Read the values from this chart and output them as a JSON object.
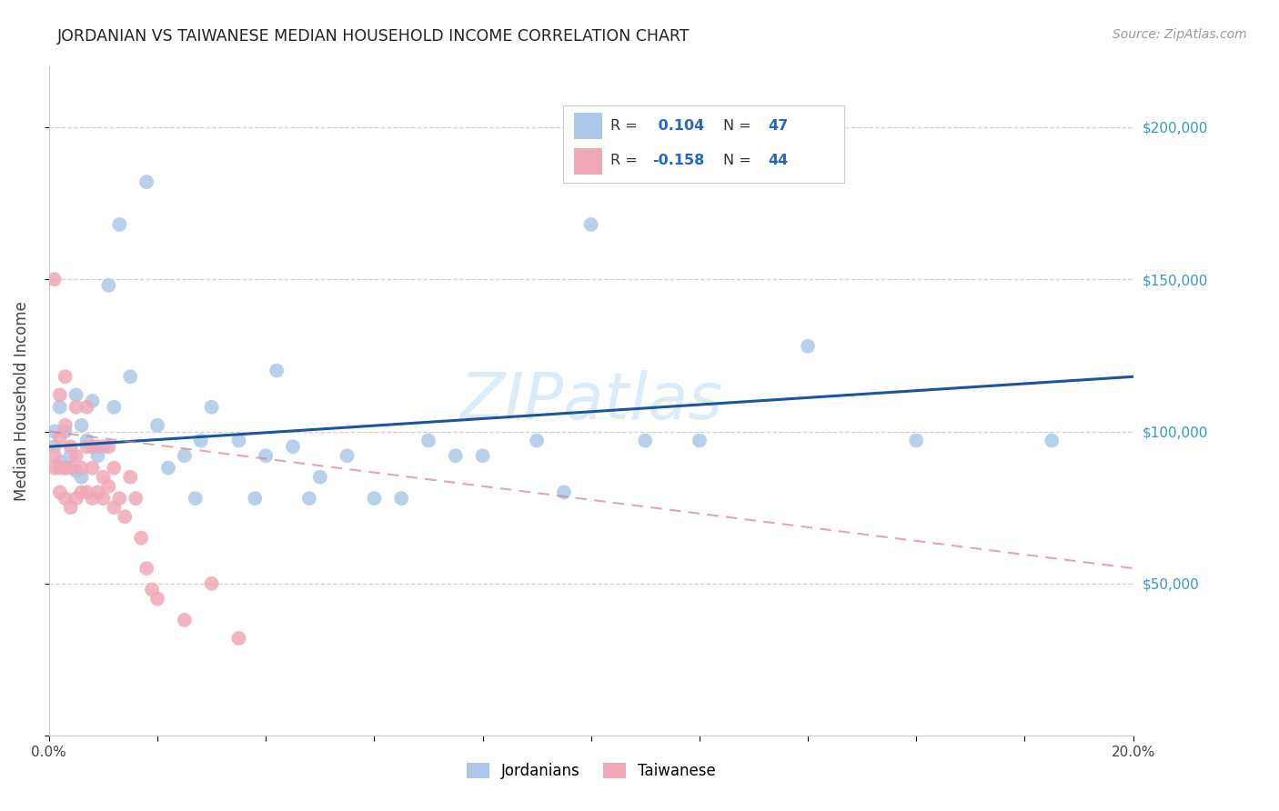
{
  "title": "JORDANIAN VS TAIWANESE MEDIAN HOUSEHOLD INCOME CORRELATION CHART",
  "source": "Source: ZipAtlas.com",
  "ylabel": "Median Household Income",
  "xlim": [
    0.0,
    0.2
  ],
  "ylim": [
    0,
    220000
  ],
  "ytick_positions": [
    0,
    50000,
    100000,
    150000,
    200000
  ],
  "ytick_labels": [
    "",
    "$50,000",
    "$100,000",
    "$150,000",
    "$200,000"
  ],
  "r_jordanian": 0.104,
  "n_jordanian": 47,
  "r_taiwanese": -0.158,
  "n_taiwanese": 44,
  "jordanian_color": "#adc8e8",
  "taiwanese_color": "#f0a8b8",
  "trend_jordanian_color": "#1a55a0",
  "trend_taiwanese_color": "#d08098",
  "background_color": "#ffffff",
  "grid_color": "#d0d0d0",
  "watermark_text": "ZIPatlas",
  "watermark_color": "#b8d8f0",
  "watermark_alpha": 0.5,
  "legend_r1_text": "R = ",
  "legend_r1_val": " 0.104",
  "legend_n1_text": "N = ",
  "legend_n1_val": "47",
  "legend_r2_text": "R = ",
  "legend_r2_val": "-0.158",
  "legend_n2_text": "N = ",
  "legend_n2_val": "44",
  "jordanian_x": [
    0.001,
    0.001,
    0.002,
    0.002,
    0.003,
    0.003,
    0.004,
    0.005,
    0.005,
    0.006,
    0.006,
    0.007,
    0.008,
    0.009,
    0.01,
    0.011,
    0.012,
    0.013,
    0.015,
    0.018,
    0.02,
    0.022,
    0.025,
    0.027,
    0.028,
    0.03,
    0.035,
    0.038,
    0.04,
    0.042,
    0.045,
    0.048,
    0.05,
    0.055,
    0.06,
    0.065,
    0.07,
    0.075,
    0.08,
    0.09,
    0.095,
    0.1,
    0.11,
    0.12,
    0.14,
    0.16,
    0.185
  ],
  "jordanian_y": [
    100000,
    95000,
    108000,
    90000,
    100000,
    88000,
    92000,
    87000,
    112000,
    85000,
    102000,
    97000,
    110000,
    92000,
    95000,
    148000,
    108000,
    168000,
    118000,
    182000,
    102000,
    88000,
    92000,
    78000,
    97000,
    108000,
    97000,
    78000,
    92000,
    120000,
    95000,
    78000,
    85000,
    92000,
    78000,
    78000,
    97000,
    92000,
    92000,
    97000,
    80000,
    168000,
    97000,
    97000,
    128000,
    97000,
    97000
  ],
  "taiwanese_x": [
    0.001,
    0.001,
    0.001,
    0.002,
    0.002,
    0.002,
    0.002,
    0.003,
    0.003,
    0.003,
    0.003,
    0.004,
    0.004,
    0.004,
    0.005,
    0.005,
    0.005,
    0.006,
    0.006,
    0.007,
    0.007,
    0.007,
    0.008,
    0.008,
    0.008,
    0.009,
    0.009,
    0.01,
    0.01,
    0.011,
    0.011,
    0.012,
    0.012,
    0.013,
    0.014,
    0.015,
    0.016,
    0.017,
    0.018,
    0.019,
    0.02,
    0.025,
    0.03,
    0.035
  ],
  "taiwanese_y": [
    88000,
    92000,
    150000,
    80000,
    88000,
    98000,
    112000,
    78000,
    88000,
    102000,
    118000,
    75000,
    88000,
    95000,
    78000,
    92000,
    108000,
    80000,
    88000,
    80000,
    95000,
    108000,
    78000,
    88000,
    95000,
    80000,
    95000,
    78000,
    85000,
    95000,
    82000,
    88000,
    75000,
    78000,
    72000,
    85000,
    78000,
    65000,
    55000,
    48000,
    45000,
    38000,
    50000,
    32000
  ],
  "trend_j_x0": 0.0,
  "trend_j_x1": 0.2,
  "trend_j_y0": 95000,
  "trend_j_y1": 118000,
  "trend_t_x0": 0.0,
  "trend_t_x1": 0.2,
  "trend_t_y0": 100000,
  "trend_t_y1": 55000
}
